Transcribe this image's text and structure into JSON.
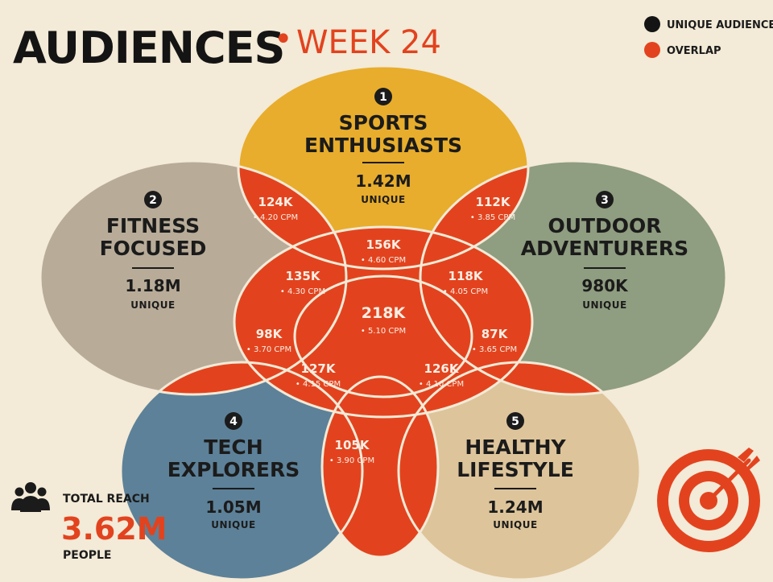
{
  "header": {
    "title": "AUDIENCES",
    "separator": "•",
    "subtitle": "WEEK 24"
  },
  "legend": [
    {
      "label": "UNIQUE AUDIENCE",
      "color": "#141414"
    },
    {
      "label": "OVERLAP",
      "color": "#e2431e"
    }
  ],
  "audiences": [
    {
      "id": "sports",
      "number": "1",
      "name_line1": "SPORTS",
      "name_line2": "ENTHUSIASTS",
      "value": "1.42M",
      "unit": "UNIQUE",
      "color": "#e8ad2c"
    },
    {
      "id": "fitness",
      "number": "2",
      "name_line1": "FITNESS",
      "name_line2": "FOCUSED",
      "value": "1.18M",
      "unit": "UNIQUE",
      "color": "#b8ac99"
    },
    {
      "id": "outdoor",
      "number": "3",
      "name_line1": "OUTDOOR",
      "name_line2": "ADVENTURERS",
      "value": "980K",
      "unit": "UNIQUE",
      "color": "#8f9d80"
    },
    {
      "id": "tech",
      "number": "4",
      "name_line1": "TECH",
      "name_line2": "EXPLORERS",
      "value": "1.05M",
      "unit": "UNIQUE",
      "color": "#5d8198"
    },
    {
      "id": "healthy",
      "number": "5",
      "name_line1": "HEALTHY",
      "name_line2": "LIFESTYLE",
      "value": "1.24M",
      "unit": "UNIQUE",
      "color": "#ddc49a"
    }
  ],
  "overlaps": [
    {
      "id": "sports-fitness",
      "value": "124K",
      "cpm": "• 4.20 CPM"
    },
    {
      "id": "sports-outdoor",
      "value": "112K",
      "cpm": "• 3.85 CPM"
    },
    {
      "id": "top-center",
      "value": "156K",
      "cpm": "• 4.60 CPM"
    },
    {
      "id": "left-center",
      "value": "135K",
      "cpm": "• 4.30 CPM"
    },
    {
      "id": "right-center",
      "value": "118K",
      "cpm": "• 4.05 CPM"
    },
    {
      "id": "center",
      "value": "218K",
      "cpm": "• 5.10 CPM"
    },
    {
      "id": "fitness-tech",
      "value": "98K",
      "cpm": "• 3.70 CPM"
    },
    {
      "id": "outdoor-healthy",
      "value": "87K",
      "cpm": "• 3.65 CPM"
    },
    {
      "id": "lower-left-center",
      "value": "127K",
      "cpm": "• 4.15 CPM"
    },
    {
      "id": "lower-right-center",
      "value": "126K",
      "cpm": "• 4.10 CPM"
    },
    {
      "id": "tech-healthy",
      "value": "105K",
      "cpm": "• 3.90 CPM"
    }
  ],
  "total_reach": {
    "label": "TOTAL REACH",
    "value": "3.62M",
    "unit": "PEOPLE",
    "icon": "people-group-icon"
  },
  "decoration": {
    "icon": "target-arrow-icon",
    "accent": "#e2431e"
  }
}
